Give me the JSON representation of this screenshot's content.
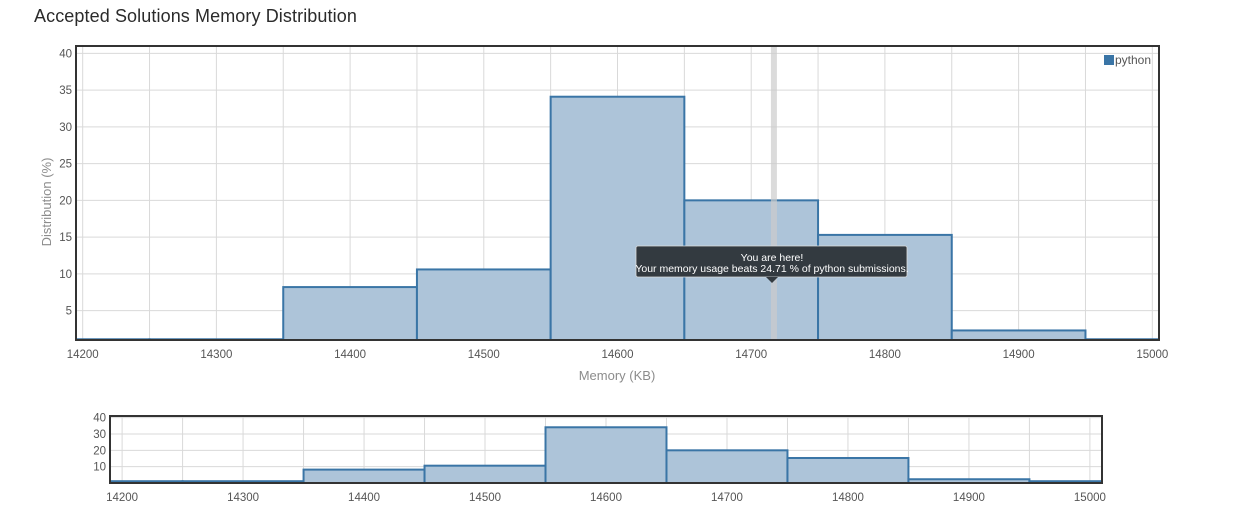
{
  "page": {
    "title": "Accepted Solutions Memory Distribution"
  },
  "colors": {
    "bar_fill": "#adc4d9",
    "bar_stroke": "#3a75a6",
    "legend_swatch": "#3a75a6",
    "grid": "#d9d9d9",
    "frame": "#333333",
    "tooltip_bg": "#333a40",
    "marker": "#cccccc"
  },
  "tooltip": {
    "line1": "You are here!",
    "line2": "Your memory usage beats 24.71 % of python submissions."
  },
  "chart_data": [
    {
      "type": "bar",
      "xlabel": "Memory (KB)",
      "ylabel": "Distribution (%)",
      "xlim": [
        14195,
        15005
      ],
      "ylim": [
        1,
        41
      ],
      "xticks": [
        14200,
        14300,
        14400,
        14500,
        14600,
        14700,
        14800,
        14900,
        15000
      ],
      "yticks": [
        5,
        10,
        15,
        20,
        25,
        30,
        35,
        40
      ],
      "grid": true,
      "legend_position": "top-right",
      "marker_x": 14717,
      "series": [
        {
          "name": "python",
          "bins": [
            {
              "x0": 14150,
              "x1": 14250,
              "value": 1.1
            },
            {
              "x0": 14250,
              "x1": 14350,
              "value": 1.1
            },
            {
              "x0": 14350,
              "x1": 14450,
              "value": 8.2
            },
            {
              "x0": 14450,
              "x1": 14550,
              "value": 10.6
            },
            {
              "x0": 14550,
              "x1": 14650,
              "value": 34.1
            },
            {
              "x0": 14650,
              "x1": 14750,
              "value": 20.0
            },
            {
              "x0": 14750,
              "x1": 14850,
              "value": 15.3
            },
            {
              "x0": 14850,
              "x1": 14950,
              "value": 2.3
            },
            {
              "x0": 14950,
              "x1": 15050,
              "value": 1.1
            }
          ]
        }
      ]
    },
    {
      "type": "bar",
      "xlim": [
        14190,
        15010
      ],
      "ylim": [
        0,
        41
      ],
      "xticks": [
        14200,
        14300,
        14400,
        14500,
        14600,
        14700,
        14800,
        14900,
        15000
      ],
      "yticks": [
        10,
        20,
        30,
        40
      ],
      "grid": true,
      "series": [
        {
          "bins": [
            {
              "x0": 14150,
              "x1": 14250,
              "value": 1.1
            },
            {
              "x0": 14250,
              "x1": 14350,
              "value": 1.1
            },
            {
              "x0": 14350,
              "x1": 14450,
              "value": 8.2
            },
            {
              "x0": 14450,
              "x1": 14550,
              "value": 10.6
            },
            {
              "x0": 14550,
              "x1": 14650,
              "value": 34.1
            },
            {
              "x0": 14650,
              "x1": 14750,
              "value": 20.0
            },
            {
              "x0": 14750,
              "x1": 14850,
              "value": 15.3
            },
            {
              "x0": 14850,
              "x1": 14950,
              "value": 2.3
            },
            {
              "x0": 14950,
              "x1": 15050,
              "value": 1.1
            }
          ]
        }
      ]
    }
  ]
}
